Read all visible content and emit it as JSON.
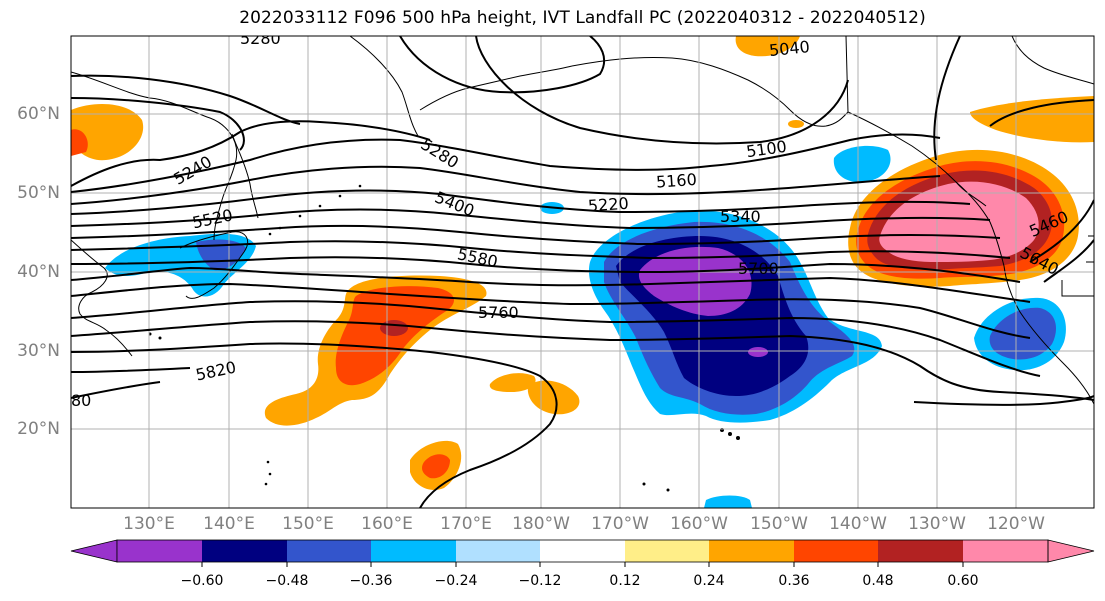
{
  "title": "2022033112 F096 500 hPa height, IVT Landfall PC (2022040312 - 2022040512)",
  "lat_labels": [
    "60°N",
    "50°N",
    "40°N",
    "30°N",
    "20°N"
  ],
  "lon_labels": [
    "130°E",
    "140°E",
    "150°E",
    "160°E",
    "170°E",
    "180°W",
    "170°W",
    "160°W",
    "150°W",
    "140°W",
    "130°W",
    "120°W"
  ],
  "contour_labels": [
    "5280",
    "5040",
    "5240",
    "5100",
    "5280",
    "5160",
    "5520",
    "5220",
    "5400",
    "5340",
    "5460",
    "5700",
    "5580",
    "5640",
    "5760",
    "5820",
    "80"
  ],
  "colorbar": {
    "colors": [
      "#9933cc",
      "#000080",
      "#3355cc",
      "#00bbff",
      "#b0e0ff",
      "#ffffff",
      "#ffee88",
      "#ffa500",
      "#ff4500",
      "#b22222",
      "#ff88aa"
    ],
    "tick_labels": [
      "−0.60",
      "−0.48",
      "−0.36",
      "−0.24",
      "−0.12",
      "0.12",
      "0.24",
      "0.36",
      "0.48",
      "0.60"
    ]
  }
}
